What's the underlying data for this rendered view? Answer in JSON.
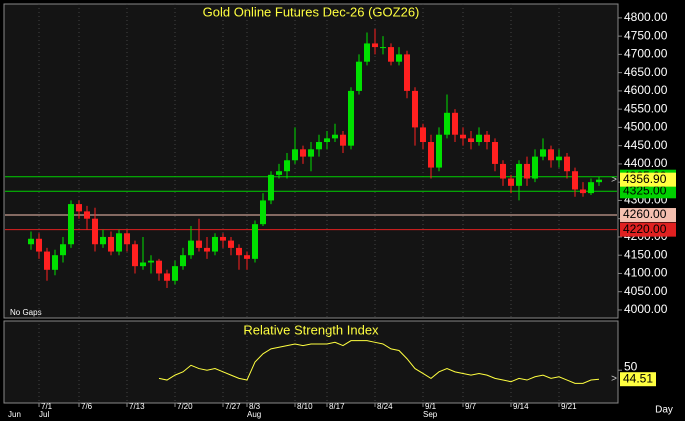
{
  "chart_data": [
    {
      "type": "candlestick",
      "title": "Gold Online Futures Dec-26 (GOZ26)",
      "note": "No Gaps",
      "x_label": "Day",
      "up_color": "#00e000",
      "down_color": "#ff2020",
      "categories": [
        null,
        "7/1",
        null,
        null,
        null,
        null,
        "7/6",
        null,
        null,
        null,
        null,
        null,
        "7/13",
        null,
        null,
        null,
        null,
        null,
        "7/20",
        null,
        null,
        null,
        null,
        null,
        "7/27",
        null,
        null,
        "8/3",
        null,
        null,
        null,
        null,
        null,
        "8/10",
        null,
        null,
        null,
        "8/17",
        null,
        null,
        null,
        null,
        null,
        "8/24",
        null,
        null,
        null,
        null,
        null,
        "9/1",
        null,
        null,
        null,
        null,
        "9/7",
        null,
        null,
        null,
        null,
        null,
        "9/14",
        null,
        null,
        null,
        null,
        null,
        "9/21",
        null,
        null,
        null,
        null,
        null
      ],
      "months": [
        "Jun",
        "Jul",
        null,
        null,
        null,
        null,
        null,
        null,
        null,
        null,
        null,
        null,
        null,
        null,
        null,
        null,
        null,
        null,
        null,
        null,
        null,
        null,
        null,
        null,
        null,
        null,
        null,
        "Aug",
        null,
        null,
        null,
        null,
        null,
        null,
        null,
        null,
        null,
        null,
        null,
        null,
        null,
        null,
        null,
        null,
        null,
        null,
        null,
        null,
        null,
        "Sep",
        null,
        null,
        null,
        null,
        null,
        null,
        null,
        null,
        null,
        null,
        null,
        null,
        null,
        null,
        null,
        null,
        null,
        null,
        null,
        null,
        null,
        null
      ],
      "open": [
        4180,
        4195,
        4160,
        4110,
        4150,
        4180,
        4290,
        4270,
        4250,
        4180,
        4200,
        4160,
        4210,
        4180,
        4120,
        4130,
        4135,
        4100,
        4080,
        4120,
        4150,
        4190,
        4170,
        4160,
        4200,
        4190,
        4170,
        4150,
        4140,
        4235,
        4300,
        4370,
        4380,
        4410,
        4440,
        4420,
        4440,
        4460,
        4470,
        4480,
        4450,
        4600,
        4680,
        4730,
        4720,
        4720,
        4680,
        4700,
        4600,
        4500,
        4460,
        4390,
        4480,
        4540,
        4480,
        4470,
        4460,
        4480,
        4460,
        4400,
        4360,
        4340,
        4400,
        4360,
        4420,
        4440,
        4410,
        4420,
        4380,
        4330,
        4320,
        4350
      ],
      "high": [
        4215,
        4210,
        4170,
        4165,
        4200,
        4300,
        4300,
        4285,
        4280,
        4220,
        4215,
        4220,
        4220,
        4190,
        4200,
        4150,
        4140,
        4110,
        4135,
        4170,
        4230,
        4250,
        4200,
        4210,
        4210,
        4200,
        4180,
        4160,
        4245,
        4320,
        4380,
        4400,
        4430,
        4500,
        4450,
        4460,
        4480,
        4490,
        4510,
        4490,
        4610,
        4700,
        4760,
        4770,
        4750,
        4730,
        4720,
        4710,
        4610,
        4510,
        4480,
        4500,
        4590,
        4550,
        4500,
        4490,
        4500,
        4490,
        4470,
        4410,
        4370,
        4410,
        4420,
        4440,
        4470,
        4450,
        4440,
        4430,
        4390,
        4350,
        4360,
        4365
      ],
      "low": [
        4165,
        4140,
        4080,
        4095,
        4130,
        4170,
        4250,
        4220,
        4160,
        4170,
        4150,
        4150,
        4160,
        4100,
        4110,
        4100,
        4080,
        4060,
        4070,
        4110,
        4140,
        4160,
        4140,
        4150,
        4170,
        4150,
        4110,
        4110,
        4130,
        4230,
        4290,
        4360,
        4360,
        4400,
        4400,
        4380,
        4420,
        4440,
        4460,
        4430,
        4440,
        4590,
        4670,
        4700,
        4700,
        4670,
        4670,
        4580,
        4450,
        4440,
        4360,
        4380,
        4470,
        4460,
        4450,
        4440,
        4450,
        4440,
        4380,
        4340,
        4320,
        4300,
        4340,
        4350,
        4410,
        4390,
        4390,
        4360,
        4310,
        4310,
        4315,
        4340
      ],
      "close": [
        4195,
        4160,
        4110,
        4150,
        4180,
        4290,
        4270,
        4250,
        4180,
        4200,
        4160,
        4210,
        4180,
        4120,
        4130,
        4135,
        4100,
        4080,
        4120,
        4150,
        4190,
        4170,
        4160,
        4200,
        4190,
        4170,
        4150,
        4140,
        4235,
        4300,
        4370,
        4380,
        4410,
        4440,
        4420,
        4440,
        4460,
        4470,
        4480,
        4450,
        4600,
        4680,
        4730,
        4720,
        4720,
        4680,
        4700,
        4600,
        4500,
        4460,
        4390,
        4480,
        4540,
        4480,
        4470,
        4460,
        4480,
        4460,
        4400,
        4360,
        4340,
        4400,
        4360,
        4420,
        4440,
        4410,
        4420,
        4380,
        4330,
        4320,
        4350,
        4356.9
      ],
      "last_price": {
        "value": 4356.9,
        "label": "4356.90"
      },
      "last_price_color": "#ffff40",
      "levels": [
        {
          "value": 4365,
          "label": "4365.00",
          "color": "#00d000"
        },
        {
          "value": 4325,
          "label": "4325.00",
          "color": "#00d000"
        },
        {
          "value": 4260,
          "label": "4260.00",
          "color": "#f4c0b0"
        },
        {
          "value": 4220,
          "label": "4220.00",
          "color": "#e02020"
        }
      ],
      "ylim": [
        3978,
        4838
      ],
      "yticks": [
        {
          "value": 4000,
          "label": "4000.00"
        },
        {
          "value": 4050,
          "label": "4050.00"
        },
        {
          "value": 4100,
          "label": "4100.00"
        },
        {
          "value": 4150,
          "label": "4150.00"
        },
        {
          "value": 4200,
          "label": "4200.00"
        },
        {
          "value": 4250,
          "label": "4250.00"
        },
        {
          "value": 4300,
          "label": "4300.00"
        },
        {
          "value": 4350,
          "label": "4350.00"
        },
        {
          "value": 4400,
          "label": "4400.00"
        },
        {
          "value": 4450,
          "label": "4450.00"
        },
        {
          "value": 4500,
          "label": "4500.00"
        },
        {
          "value": 4550,
          "label": "4550.00"
        },
        {
          "value": 4600,
          "label": "4600.00"
        },
        {
          "value": 4650,
          "label": "4650.00"
        },
        {
          "value": 4700,
          "label": "4700.00"
        },
        {
          "value": 4750,
          "label": "4750.00"
        },
        {
          "value": 4800,
          "label": "4800.00"
        }
      ]
    },
    {
      "type": "line",
      "title": "Relative Strength Index",
      "color": "#ffff40",
      "label_color": "#ffff40",
      "values": [
        null,
        null,
        null,
        null,
        null,
        null,
        null,
        null,
        null,
        null,
        null,
        null,
        null,
        null,
        null,
        null,
        45,
        44,
        47,
        49,
        53,
        51,
        50,
        51,
        49,
        47,
        45,
        44,
        55,
        60,
        63,
        64,
        65,
        66,
        65,
        66,
        66,
        66,
        67,
        65,
        68,
        68,
        68,
        67,
        66,
        63,
        62,
        57,
        51,
        48,
        45,
        49,
        51,
        49,
        48,
        47,
        48,
        47,
        45,
        44,
        43,
        45,
        44,
        46,
        47,
        45,
        46,
        44,
        42,
        42,
        44,
        44.51
      ],
      "ylim": [
        30,
        80
      ],
      "yticks": [
        50
      ]
    }
  ]
}
